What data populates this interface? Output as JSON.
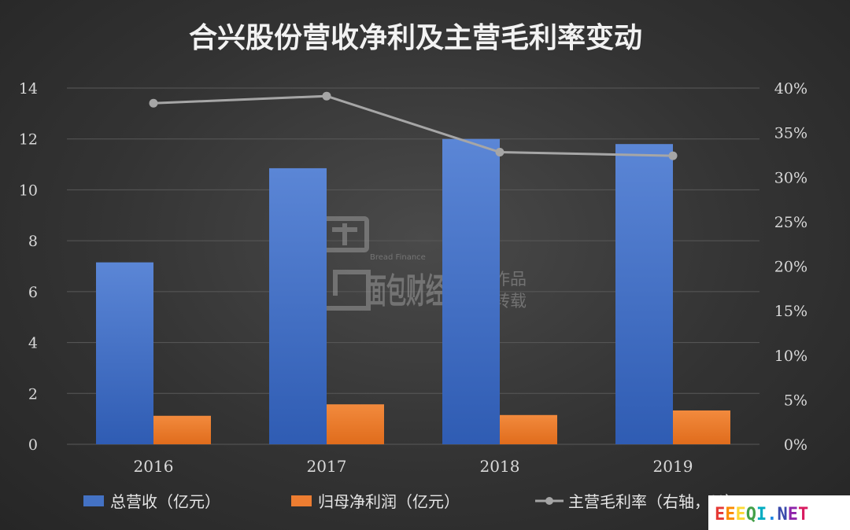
{
  "chart_data": {
    "type": "bar",
    "title": "合兴股份营收净利及主营毛利率变动",
    "categories": [
      "2016",
      "2017",
      "2018",
      "2019"
    ],
    "series": [
      {
        "name": "总营收（亿元）",
        "type": "bar",
        "axis": "left",
        "color": "#4472c4",
        "values": [
          7.15,
          10.85,
          12.0,
          11.8
        ]
      },
      {
        "name": "归母净利润（亿元）",
        "type": "bar",
        "axis": "left",
        "color": "#ed7d31",
        "values": [
          1.12,
          1.57,
          1.15,
          1.33
        ]
      },
      {
        "name": "主营毛利率（右轴，%）",
        "type": "line",
        "axis": "right",
        "color": "#a6a6a6",
        "values": [
          38.3,
          39.1,
          32.8,
          32.4
        ]
      }
    ],
    "y_left": {
      "min": 0,
      "max": 14,
      "ticks": [
        "0",
        "2",
        "4",
        "6",
        "8",
        "10",
        "12",
        "14"
      ]
    },
    "y_right": {
      "min": 0,
      "max": 40,
      "ticks": [
        "0%",
        "5%",
        "10%",
        "15%",
        "20%",
        "25%",
        "30%",
        "35%",
        "40%"
      ]
    },
    "grid": true,
    "legend_position": "bottom"
  },
  "watermark": {
    "small": "Bread Finance",
    "brand": "面包财经",
    "line1": "原创作品",
    "line2": "禁止转载"
  },
  "badge": {
    "text": "EEEQI.NET"
  },
  "colors": {
    "background": "#333333",
    "grid": "#595959"
  }
}
